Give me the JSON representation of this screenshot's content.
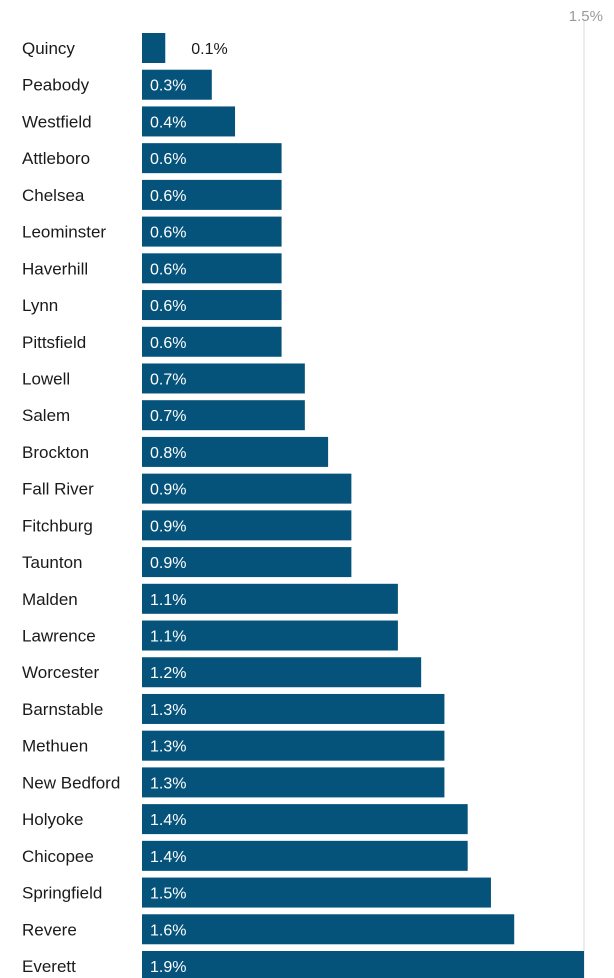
{
  "chart_data": {
    "type": "bar",
    "orientation": "horizontal",
    "title": "",
    "xlabel": "",
    "ylabel": "",
    "categories": [
      "Quincy",
      "Peabody",
      "Westfield",
      "Attleboro",
      "Chelsea",
      "Leominster",
      "Haverhill",
      "Lynn",
      "Pittsfield",
      "Lowell",
      "Salem",
      "Brockton",
      "Fall River",
      "Fitchburg",
      "Taunton",
      "Malden",
      "Lawrence",
      "Worcester",
      "Barnstable",
      "Methuen",
      "New Bedford",
      "Holyoke",
      "Chicopee",
      "Springfield",
      "Revere",
      "Everett"
    ],
    "values": [
      0.1,
      0.3,
      0.4,
      0.6,
      0.6,
      0.6,
      0.6,
      0.6,
      0.6,
      0.7,
      0.7,
      0.8,
      0.9,
      0.9,
      0.9,
      1.1,
      1.1,
      1.2,
      1.3,
      1.3,
      1.3,
      1.4,
      1.4,
      1.5,
      1.6,
      1.9
    ],
    "value_labels": [
      "0.1%",
      "0.3%",
      "0.4%",
      "0.6%",
      "0.6%",
      "0.6%",
      "0.6%",
      "0.6%",
      "0.6%",
      "0.7%",
      "0.7%",
      "0.8%",
      "0.9%",
      "0.9%",
      "0.9%",
      "1.1%",
      "1.1%",
      "1.2%",
      "1.3%",
      "1.3%",
      "1.3%",
      "1.4%",
      "1.4%",
      "1.5%",
      "1.6%",
      "1.9%"
    ],
    "xlim": [
      0,
      1.9
    ],
    "reference_line": {
      "value": 1.5,
      "label": "1.5%"
    },
    "grid": false,
    "legend": "none",
    "colors": {
      "bar": "#05527a",
      "label_inside": "#ffffff",
      "label_outside": "#1a1a1a",
      "reference_line": "#d9d9d9"
    }
  }
}
